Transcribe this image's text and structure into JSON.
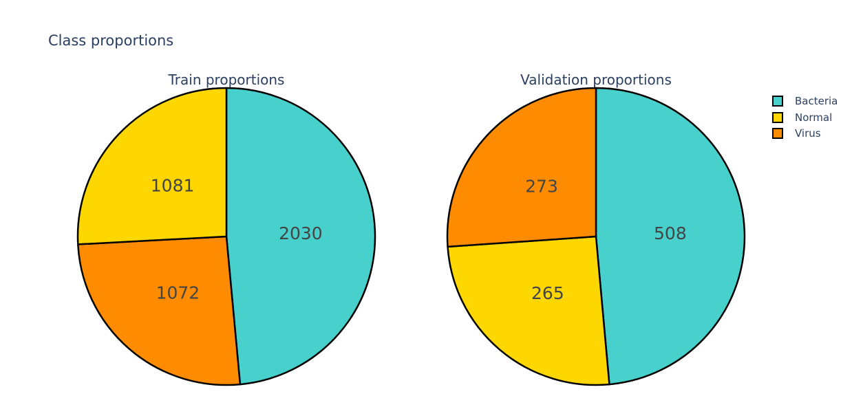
{
  "chart_data": {
    "type": "pie",
    "title": "Class proportions",
    "legend_position": "top-right",
    "legend": [
      {
        "label": "Bacteria",
        "color": "#48d1cc"
      },
      {
        "label": "Normal",
        "color": "#ffd700"
      },
      {
        "label": "Virus",
        "color": "#ff8c00"
      }
    ],
    "charts": [
      {
        "title": "Train proportions",
        "slices": [
          {
            "label": "Bacteria",
            "value": 2030,
            "color": "#48d1cc"
          },
          {
            "label": "Virus",
            "value": 1072,
            "color": "#ff8c00"
          },
          {
            "label": "Normal",
            "value": 1081,
            "color": "#ffd700"
          }
        ]
      },
      {
        "title": "Validation proportions",
        "slices": [
          {
            "label": "Bacteria",
            "value": 508,
            "color": "#48d1cc"
          },
          {
            "label": "Normal",
            "value": 265,
            "color": "#ffd700"
          },
          {
            "label": "Virus",
            "value": 273,
            "color": "#ff8c00"
          }
        ]
      }
    ]
  }
}
